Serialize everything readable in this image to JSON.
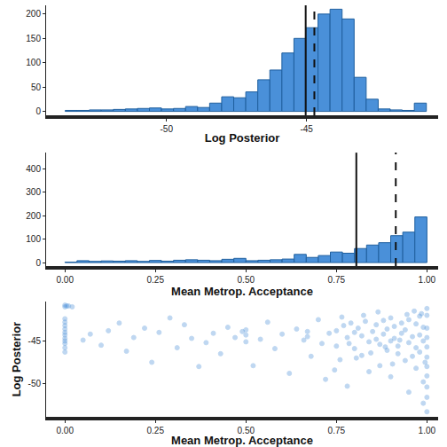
{
  "chart_data": [
    {
      "type": "histogram",
      "x_label": "Log Posterior",
      "bins": [
        -53.62,
        -53.19,
        -52.76,
        -52.33,
        -51.9,
        -51.47,
        -51.04,
        -50.61,
        -50.18,
        -49.75,
        -49.32,
        -48.89,
        -48.46,
        -48.03,
        -47.6,
        -47.17,
        -46.74,
        -46.31,
        -45.88,
        -45.45,
        -45.02,
        -44.59,
        -44.16,
        -43.73,
        -43.3,
        -42.87,
        -42.44,
        -42.01,
        -41.58,
        -41.15,
        -40.72
      ],
      "counts": [
        2,
        2,
        3,
        3,
        4,
        5,
        6,
        7,
        5,
        6,
        10,
        8,
        17,
        30,
        28,
        40,
        65,
        85,
        120,
        150,
        172,
        200,
        210,
        190,
        70,
        25,
        5,
        3,
        2,
        17
      ],
      "color": "#4a90d9",
      "vlines": [
        {
          "value": -45.03,
          "line_style": "solid"
        },
        {
          "value": -44.72,
          "line_style": "dashed"
        }
      ],
      "xlim": [
        -54.3,
        -40.3
      ],
      "xticks": [
        -50,
        -45
      ],
      "ylim": [
        -8,
        218
      ],
      "yticks": [
        0,
        50,
        100,
        150,
        200
      ],
      "grid": false
    },
    {
      "type": "histogram",
      "x_label": "Mean Metrop. Acceptance",
      "bins": [
        0,
        0.0333,
        0.0667,
        0.1,
        0.1333,
        0.1667,
        0.2,
        0.2333,
        0.2667,
        0.3,
        0.3333,
        0.3667,
        0.4,
        0.4333,
        0.4667,
        0.5,
        0.5333,
        0.5667,
        0.6,
        0.6333,
        0.6667,
        0.7,
        0.7333,
        0.7667,
        0.8,
        0.8333,
        0.8667,
        0.9,
        0.9333,
        0.9667,
        1.0
      ],
      "counts": [
        2,
        8,
        5,
        7,
        6,
        8,
        5,
        9,
        6,
        10,
        12,
        10,
        8,
        14,
        18,
        8,
        10,
        12,
        15,
        35,
        22,
        30,
        45,
        40,
        60,
        75,
        85,
        115,
        130,
        195
      ],
      "color": "#4a90d9",
      "vlines": [
        {
          "value": 0.805,
          "line_style": "solid"
        },
        {
          "value": 0.914,
          "line_style": "dashed"
        }
      ],
      "xlim": [
        -0.052,
        1.031
      ],
      "xticks": [
        {
          "value": 0,
          "label": "0.00"
        },
        {
          "value": 0.25,
          "label": "0.25"
        },
        {
          "value": 0.5,
          "label": "0.50"
        },
        {
          "value": 0.75,
          "label": "0.75"
        },
        {
          "value": 1,
          "label": "1.00"
        }
      ],
      "ylim": [
        -15,
        470
      ],
      "yticks": [
        0,
        100,
        200,
        300,
        400
      ],
      "grid": false
    },
    {
      "type": "scatter",
      "x_label": "Mean Metrop. Acceptance",
      "y_label": "Log Posterior",
      "x": [
        0,
        0.005,
        0,
        0.01,
        0,
        0,
        0,
        0,
        0,
        0,
        0,
        0,
        0,
        0,
        0,
        0.02,
        0.05,
        0.07,
        0.1,
        0.12,
        0.15,
        0.17,
        0.19,
        0.22,
        0.24,
        0.26,
        0.29,
        0.31,
        0.33,
        0.35,
        0.37,
        0.39,
        0.41,
        0.43,
        0.45,
        0.47,
        0.49,
        0.5,
        0.5,
        0.5,
        0.52,
        0.54,
        0.56,
        0.58,
        0.6,
        0.62,
        0.64,
        0.66,
        0.67,
        0.67,
        0.68,
        0.7,
        0.71,
        0.72,
        0.73,
        0.75,
        0.75,
        0.76,
        0.77,
        0.78,
        0.78,
        0.79,
        0.8,
        0.8,
        0.81,
        0.82,
        0.82,
        0.83,
        0.84,
        0.84,
        0.85,
        0.86,
        0.86,
        0.87,
        0.87,
        0.88,
        0.88,
        0.89,
        0.89,
        0.9,
        0.9,
        0.9,
        0.91,
        0.91,
        0.92,
        0.92,
        0.93,
        0.93,
        0.94,
        0.94,
        0.95,
        0.95,
        0.95,
        0.96,
        0.96,
        0.97,
        0.97,
        0.97,
        0.98,
        0.98,
        0.98,
        0.99,
        0.99,
        0.99,
        0.99,
        1.0,
        1.0,
        1.0,
        1.0,
        1.0,
        1.0,
        1.0,
        1.0,
        1.0,
        1.0,
        1.0,
        0.995,
        0.985,
        0.965,
        0.945,
        0.925,
        0.905,
        0.885,
        0.865,
        0.845,
        0.825,
        0.805,
        0.785,
        0.765,
        0.745
      ],
      "values": [
        -40.8,
        -40.9,
        -41.0,
        -40.9,
        -42.4,
        -42.8,
        -43.2,
        -43.6,
        -44.0,
        -44.3,
        -44.7,
        -45.0,
        -45.3,
        -45.8,
        -46.3,
        -41.0,
        -44.9,
        -44.2,
        -45.5,
        -43.8,
        -42.9,
        -46.2,
        -44.6,
        -43.5,
        -47.5,
        -44.0,
        -42.3,
        -45.8,
        -43.1,
        -44.7,
        -48.0,
        -45.2,
        -44.1,
        -46.5,
        -43.4,
        -44.6,
        -43.9,
        -44.3,
        -43.7,
        -45.1,
        -47.9,
        -44.8,
        -42.8,
        -45.9,
        -44.2,
        -48.8,
        -43.6,
        -44.9,
        -43.9,
        -44.5,
        -46.8,
        -42.5,
        -45.3,
        -49.5,
        -44.1,
        -43.8,
        -45.6,
        -47.2,
        -43.2,
        -44.6,
        -50.3,
        -42.9,
        -44.0,
        -45.9,
        -43.5,
        -46.7,
        -44.4,
        -42.7,
        -45.1,
        -48.6,
        -43.9,
        -44.8,
        -43.1,
        -47.9,
        -45.4,
        -42.6,
        -44.2,
        -46.1,
        -43.6,
        -45.0,
        -42.3,
        -49.2,
        -44.7,
        -43.3,
        -46.5,
        -45.6,
        -42.9,
        -44.1,
        -47.3,
        -43.7,
        -45.2,
        -42.5,
        -51.0,
        -44.5,
        -46.8,
        -43.0,
        -45.8,
        -48.2,
        -44.3,
        -42.1,
        -46.3,
        -43.4,
        -45.0,
        -49.8,
        -52.3,
        -41.2,
        -42.0,
        -43.5,
        -44.6,
        -45.7,
        -46.9,
        -48.0,
        -49.1,
        -50.4,
        -51.6,
        -53.3,
        -47.5,
        -41.8,
        -41.5,
        -41.9,
        -44.9,
        -47.7,
        -45.7,
        -41.6,
        -46.4,
        -42.0,
        -47.0,
        -45.3,
        -42.2,
        -48.4
      ],
      "color": "#4a90d9",
      "xlim": [
        -0.052,
        1.031
      ],
      "xticks": [
        {
          "value": 0,
          "label": "0.00"
        },
        {
          "value": 0.25,
          "label": "0.25"
        },
        {
          "value": 0.5,
          "label": "0.50"
        },
        {
          "value": 0.75,
          "label": "0.75"
        },
        {
          "value": 1,
          "label": "1.00"
        }
      ],
      "ylim": [
        -53.9,
        -40.4
      ],
      "yticks": [
        -50,
        -45
      ],
      "grid": false
    }
  ]
}
